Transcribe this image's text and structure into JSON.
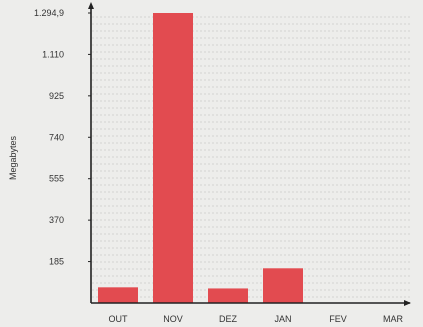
{
  "chart_data": {
    "type": "bar",
    "categories": [
      "OUT",
      "NOV",
      "DEZ",
      "JAN",
      "FEV",
      "MAR"
    ],
    "values": [
      70,
      1294.9,
      65,
      155,
      0,
      0
    ],
    "ylabel": "Megabytes",
    "xlabel": "",
    "title": "",
    "ylim": [
      0,
      1294.9
    ],
    "yticks": [
      185,
      370,
      555,
      740,
      925,
      1110,
      1294.9
    ],
    "ytick_labels": [
      "185",
      "370",
      "555",
      "740",
      "925",
      "1.110",
      "1.294,9"
    ],
    "grid": true,
    "bar_color": "#e24b50",
    "axis_color": "#222222",
    "grid_color": "#b9b9b9"
  }
}
